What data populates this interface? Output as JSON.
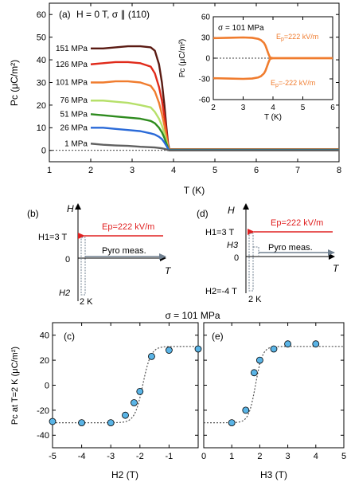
{
  "chart_data": [
    {
      "id": "a",
      "type": "line",
      "panel_label": "(a)",
      "title": "H = 0 T, σ ∥ (110)",
      "xlabel": "T (K)",
      "ylabel": "Pc (μC/m²)",
      "xlim": [
        1,
        8
      ],
      "ylim": [
        -5,
        65
      ],
      "x_ticks": [
        1,
        2,
        3,
        4,
        5,
        6,
        7,
        8
      ],
      "y_ticks": [
        0,
        10,
        20,
        30,
        40,
        50,
        60
      ],
      "series": [
        {
          "name": "151 MPa",
          "color": "#5a1a12",
          "x": [
            2.0,
            2.3,
            2.6,
            2.9,
            3.2,
            3.45,
            3.55,
            3.65,
            3.72,
            3.78,
            3.83,
            3.87,
            3.9,
            4.0,
            5.0,
            6.0,
            7.0,
            8.0
          ],
          "y": [
            45,
            45,
            45.5,
            46,
            46,
            45.5,
            44,
            38,
            30,
            20,
            10,
            3,
            0.5,
            0.5,
            0.5,
            0.5,
            0.5,
            0.5
          ]
        },
        {
          "name": "126 MPa",
          "color": "#e02a1a",
          "x": [
            2.0,
            2.3,
            2.6,
            2.9,
            3.2,
            3.45,
            3.55,
            3.65,
            3.72,
            3.78,
            3.83,
            3.87,
            3.9,
            4.0,
            5.0,
            6.0,
            7.0,
            8.0
          ],
          "y": [
            38,
            38.5,
            39,
            39,
            38.5,
            37,
            34,
            28,
            22,
            15,
            8,
            2,
            0.4,
            0.4,
            0.4,
            0.4,
            0.4,
            0.4
          ]
        },
        {
          "name": "101 MPa",
          "color": "#f07c2e",
          "x": [
            2.0,
            2.3,
            2.6,
            2.9,
            3.2,
            3.45,
            3.55,
            3.65,
            3.72,
            3.78,
            3.83,
            3.87,
            3.9,
            4.0,
            5.0,
            6.0,
            7.0,
            8.0
          ],
          "y": [
            30,
            30,
            30.5,
            30.5,
            30,
            28.5,
            26,
            21,
            16,
            11,
            6,
            1.5,
            0.3,
            0.3,
            0.3,
            0.3,
            0.3,
            0.3
          ]
        },
        {
          "name": "76 MPa",
          "color": "#b6e06a",
          "x": [
            2.0,
            2.3,
            2.6,
            2.9,
            3.2,
            3.45,
            3.55,
            3.65,
            3.72,
            3.78,
            3.83,
            3.87,
            3.9,
            4.0,
            5.0,
            6.0,
            7.0,
            8.0
          ],
          "y": [
            22,
            22,
            21.5,
            21,
            20,
            19,
            17,
            14,
            11,
            7.5,
            4,
            1,
            0.3,
            0.3,
            0.3,
            0.3,
            0.3,
            0.3
          ]
        },
        {
          "name": "51 MPa",
          "color": "#2e8b1e",
          "x": [
            2.0,
            2.3,
            2.6,
            2.9,
            3.2,
            3.45,
            3.55,
            3.65,
            3.72,
            3.78,
            3.83,
            3.87,
            3.9,
            4.0,
            5.0,
            6.0,
            7.0,
            8.0
          ],
          "y": [
            16,
            15.5,
            15,
            14.5,
            14,
            13,
            12,
            10,
            8,
            5.5,
            3,
            0.8,
            0.2,
            0.2,
            0.2,
            0.2,
            0.2,
            0.2
          ]
        },
        {
          "name": "26 MPa",
          "color": "#2a6ad8",
          "x": [
            2.0,
            2.3,
            2.6,
            2.9,
            3.2,
            3.45,
            3.55,
            3.65,
            3.72,
            3.78,
            3.83,
            3.87,
            3.9,
            4.0,
            5.0,
            6.0,
            7.0,
            8.0
          ],
          "y": [
            10,
            10,
            9.5,
            9,
            8.5,
            7.5,
            7,
            6,
            5,
            3.5,
            2,
            0.6,
            0.1,
            0.1,
            0.1,
            0.1,
            0.1,
            0.1
          ]
        },
        {
          "name": "1 MPa",
          "color": "#606060",
          "x": [
            2.0,
            2.3,
            2.6,
            2.9,
            3.2,
            3.45,
            3.55,
            3.65,
            3.72,
            3.78,
            3.83,
            3.87,
            3.9,
            4.0,
            5.0,
            6.0,
            7.0,
            8.0
          ],
          "y": [
            3,
            2.5,
            2.2,
            2,
            1.6,
            1.4,
            1.3,
            1.1,
            0.9,
            0.7,
            0.4,
            0.1,
            0,
            0,
            0,
            0,
            0,
            0
          ]
        }
      ],
      "inset": {
        "title": "σ = 101 MPa",
        "xlabel": "T (K)",
        "ylabel": "Pc (μC/m²)",
        "xlim": [
          2,
          6
        ],
        "ylim": [
          -60,
          60
        ],
        "x_ticks": [
          2,
          3,
          4,
          5,
          6
        ],
        "y_ticks": [
          -60,
          -30,
          0,
          30,
          60
        ],
        "color": "#f07c2e",
        "series": [
          {
            "name": "Ep=222 kV/m",
            "label_main": "E",
            "label_sub": "p",
            "label_rest": "=222 kV/m",
            "x": [
              2.0,
              2.5,
              3.0,
              3.3,
              3.5,
              3.6,
              3.7,
              3.75,
              3.8,
              3.85,
              3.9,
              4.0,
              5.0,
              6.0
            ],
            "y": [
              29,
              29.5,
              30,
              29.5,
              28,
              26,
              22,
              18,
              12,
              6,
              1,
              0,
              0,
              0
            ]
          },
          {
            "name": "Ep=-222 kV/m",
            "label_main": "E",
            "label_sub": "p",
            "label_rest": "=-222 kV/m",
            "x": [
              2.0,
              2.5,
              3.0,
              3.3,
              3.5,
              3.6,
              3.7,
              3.75,
              3.8,
              3.85,
              3.9,
              4.0,
              5.0,
              6.0
            ],
            "y": [
              -29,
              -29.5,
              -30,
              -29.5,
              -28,
              -26,
              -22,
              -18,
              -12,
              -6,
              -1,
              0,
              0,
              0
            ]
          }
        ]
      }
    },
    {
      "id": "c",
      "type": "scatter",
      "panel_label": "(c)",
      "xlabel": "H2 (T)",
      "ylabel": "Pc at T=2 K (μC/m²)",
      "xlim": [
        -5,
        0
      ],
      "ylim": [
        -50,
        50
      ],
      "x_ticks": [
        -5,
        -4,
        -3,
        -2,
        -1
      ],
      "y_ticks": [
        -40,
        -20,
        0,
        20,
        40
      ],
      "points_x": [
        -5.0,
        -4.0,
        -3.0,
        -2.5,
        -2.2,
        -2.0,
        -1.6,
        -1.0,
        0.0
      ],
      "points_y": [
        -29,
        -30,
        -30,
        -24,
        -14,
        -5,
        23,
        28,
        29
      ],
      "fit_center": -1.9,
      "fit_width": 0.28
    },
    {
      "id": "e",
      "type": "scatter",
      "panel_label": "(e)",
      "xlabel": "H3 (T)",
      "xlim": [
        0,
        5
      ],
      "ylim": [
        -50,
        50
      ],
      "x_ticks": [
        0,
        1,
        2,
        3,
        4,
        5
      ],
      "points_x": [
        1.0,
        1.5,
        1.8,
        2.0,
        2.5,
        3.0,
        4.0
      ],
      "points_y": [
        -30,
        -20,
        10,
        20,
        29,
        33,
        33
      ],
      "fit_center": 1.85,
      "fit_width": 0.25
    }
  ],
  "suptitle_cde": "σ = 101 MPa",
  "schematic_b": {
    "panel_label": "(b)",
    "y_axis_label": "H",
    "x_axis_label": "T",
    "h1_label": "H1=3 T",
    "zero_label": "0",
    "h2_label": "H2",
    "ep_label": "Ep=222 kV/m",
    "pyro_label": "Pyro meas.",
    "k2_label": "2 K"
  },
  "schematic_d": {
    "panel_label": "(d)",
    "y_axis_label": "H",
    "x_axis_label": "T",
    "h1_label": "H1=3 T",
    "h3_label": "H3",
    "zero_label": "0",
    "h2_label": "H2=-4 T",
    "ep_label": "Ep=222 kV/m",
    "pyro_label": "Pyro meas.",
    "k2_label": "2 K"
  },
  "colors": {
    "arrow_red": "#e02020",
    "gray_box": "#708090",
    "marker_fill": "#5ab4e6"
  }
}
